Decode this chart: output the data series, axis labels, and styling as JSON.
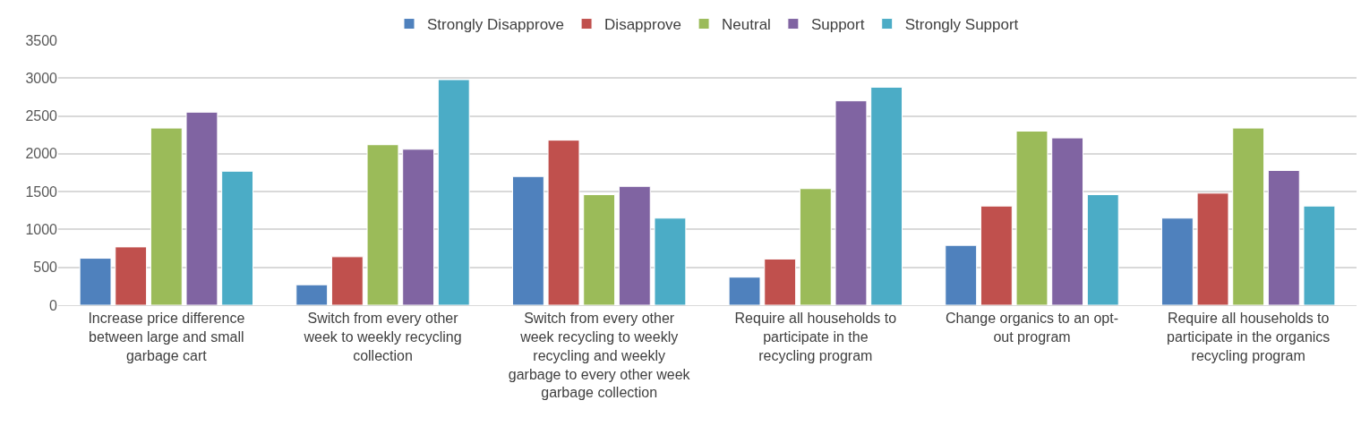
{
  "chart_data": {
    "type": "bar",
    "categories": [
      "Increase price difference between large and small garbage cart",
      "Switch from every other week to weekly recycling collection",
      "Switch from every other week recycling to weekly recycling and weekly garbage to every other week garbage collection",
      "Require all households to participate in the recycling program",
      "Change organics to an opt-out program",
      "Require all households to participate in the organics recycling program"
    ],
    "series": [
      {
        "name": "Strongly Disapprove",
        "color": "#4f81bd",
        "values": [
          620,
          270,
          1700,
          370,
          790,
          1150
        ]
      },
      {
        "name": "Disapprove",
        "color": "#c0504d",
        "values": [
          770,
          640,
          2180,
          610,
          1310,
          1480
        ]
      },
      {
        "name": "Neutral",
        "color": "#9bbb59",
        "values": [
          2340,
          2120,
          1460,
          1540,
          2300,
          2340
        ]
      },
      {
        "name": "Support",
        "color": "#8064a2",
        "values": [
          2550,
          2060,
          1570,
          2700,
          2210,
          1780
        ]
      },
      {
        "name": "Strongly Support",
        "color": "#4bacc6",
        "values": [
          1770,
          2980,
          1150,
          2880,
          1460,
          1310
        ]
      }
    ],
    "ylim": [
      0,
      3500
    ],
    "yticks": [
      0,
      500,
      1000,
      1500,
      2000,
      2500,
      3000,
      3500
    ],
    "grid": "y",
    "legend": "top"
  }
}
